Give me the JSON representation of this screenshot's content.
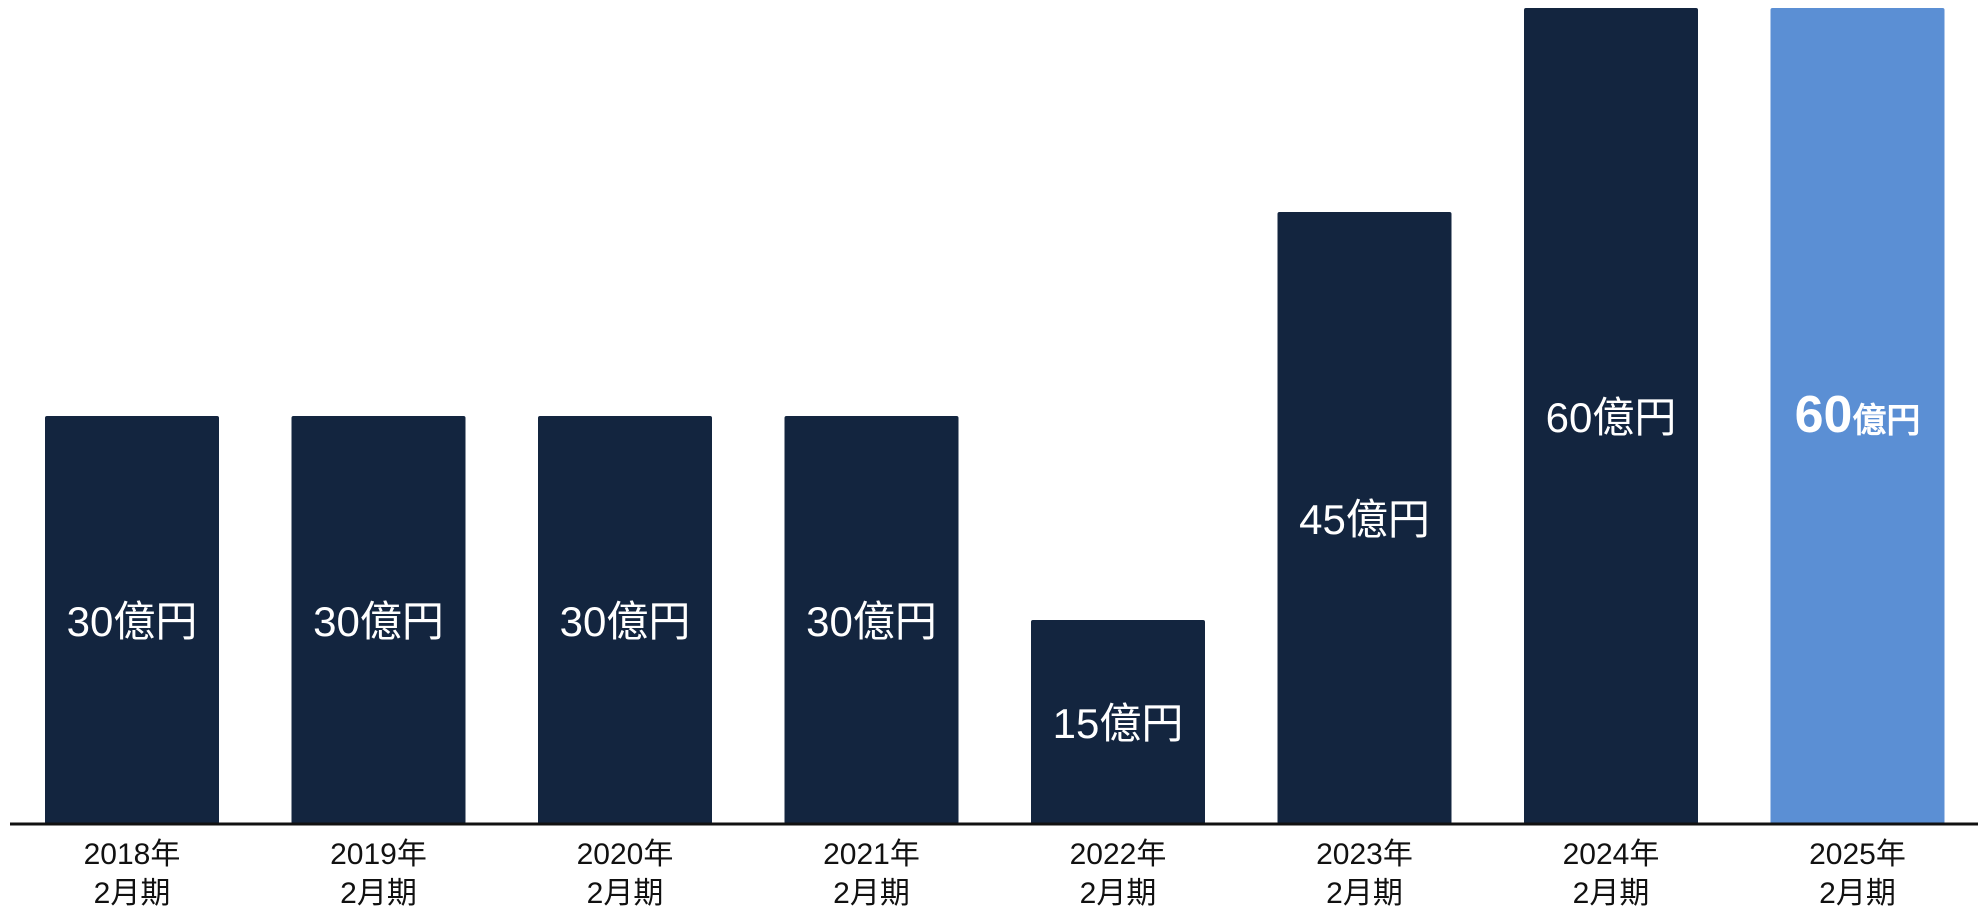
{
  "chart_data": {
    "type": "bar",
    "categories": [
      [
        "2018年",
        "2月期"
      ],
      [
        "2019年",
        "2月期"
      ],
      [
        "2020年",
        "2月期"
      ],
      [
        "2021年",
        "2月期"
      ],
      [
        "2022年",
        "2月期"
      ],
      [
        "2023年",
        "2月期"
      ],
      [
        "2024年",
        "2月期"
      ],
      [
        "2025年",
        "2月期"
      ]
    ],
    "values": [
      30,
      30,
      30,
      30,
      15,
      45,
      60,
      60
    ],
    "data_labels": [
      {
        "number": "30",
        "unit": "億円",
        "emphasis": false
      },
      {
        "number": "30",
        "unit": "億円",
        "emphasis": false
      },
      {
        "number": "30",
        "unit": "億円",
        "emphasis": false
      },
      {
        "number": "30",
        "unit": "億円",
        "emphasis": false
      },
      {
        "number": "15",
        "unit": "億円",
        "emphasis": false
      },
      {
        "number": "45",
        "unit": "億円",
        "emphasis": false
      },
      {
        "number": "60",
        "unit": "億円",
        "emphasis": false
      },
      {
        "number": "60",
        "unit": "億円",
        "emphasis": true
      }
    ],
    "ylim": [
      0,
      60
    ],
    "grid": false,
    "legend": "none",
    "colors": {
      "default_bar": "#13253F",
      "highlight_bar": "#5B8FD4",
      "axis": "#111111"
    },
    "highlight_index": 7,
    "title": "",
    "xlabel": "",
    "ylabel": ""
  }
}
